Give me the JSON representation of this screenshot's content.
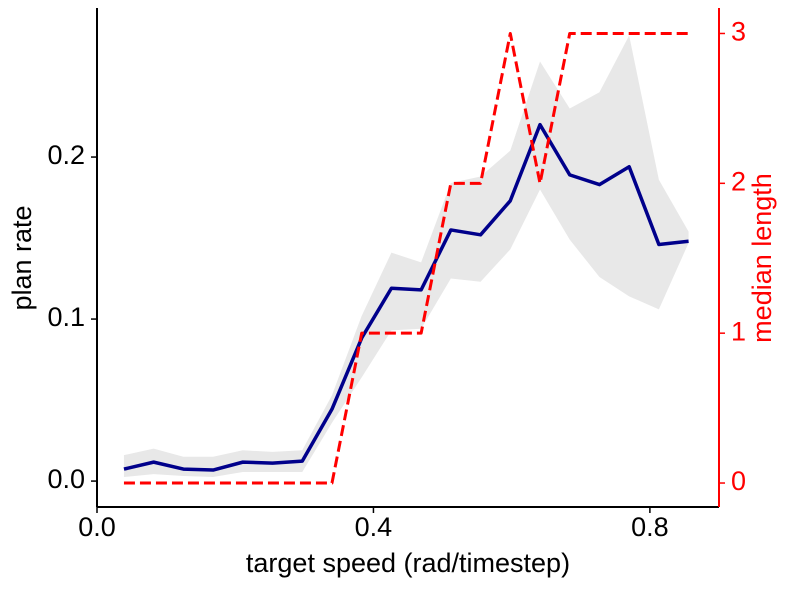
{
  "chart_data": {
    "type": "line",
    "x_label": "target speed (rad/timestep)",
    "y_label": "plan rate",
    "y2_label": "median length",
    "x": [
      0.039,
      0.082,
      0.125,
      0.168,
      0.211,
      0.254,
      0.297,
      0.34,
      0.383,
      0.426,
      0.469,
      0.512,
      0.555,
      0.598,
      0.641,
      0.684,
      0.727,
      0.77,
      0.813,
      0.856
    ],
    "series": [
      {
        "color": "#00008b",
        "values": [
          0.0074,
          0.0117,
          0.0074,
          0.0068,
          0.0117,
          0.0111,
          0.0123,
          0.0444,
          0.0883,
          0.119,
          0.118,
          0.155,
          0.152,
          0.173,
          0.22,
          0.189,
          0.183,
          0.194,
          0.146,
          0.148
        ],
        "upper": [
          0.016,
          0.02,
          0.015,
          0.015,
          0.019,
          0.018,
          0.019,
          0.053,
          0.102,
          0.141,
          0.135,
          0.184,
          0.188,
          0.204,
          0.259,
          0.23,
          0.24,
          0.275,
          0.186,
          0.154
        ],
        "lower": [
          0.0025,
          0.0043,
          0.0031,
          0.0025,
          0.0056,
          0.0056,
          0.0056,
          0.036,
          0.064,
          0.093,
          0.094,
          0.125,
          0.123,
          0.143,
          0.18,
          0.149,
          0.126,
          0.114,
          0.106,
          0.147
        ],
        "band_color": "#e8e8e8"
      },
      {
        "color": "#ff0000",
        "axis": "y2",
        "dashed": true,
        "values": [
          0,
          0,
          0,
          0,
          0,
          0,
          0,
          0,
          1,
          1,
          1,
          2,
          2,
          3,
          2,
          3,
          3,
          3,
          3,
          3
        ]
      }
    ],
    "xlim": [
      0,
      0.9
    ],
    "xticks": [
      {
        "value": 0,
        "label": "0.0"
      },
      0.4,
      0.8
    ],
    "ylim": [
      -0.016,
      0.292
    ],
    "yticks": [
      {
        "value": 0,
        "label": "0.0"
      },
      0.1,
      0.2
    ],
    "y2lim": [
      -0.16,
      3.17
    ],
    "y2ticks": [
      0,
      1,
      2,
      3
    ],
    "y2_color": "#ff0000"
  }
}
